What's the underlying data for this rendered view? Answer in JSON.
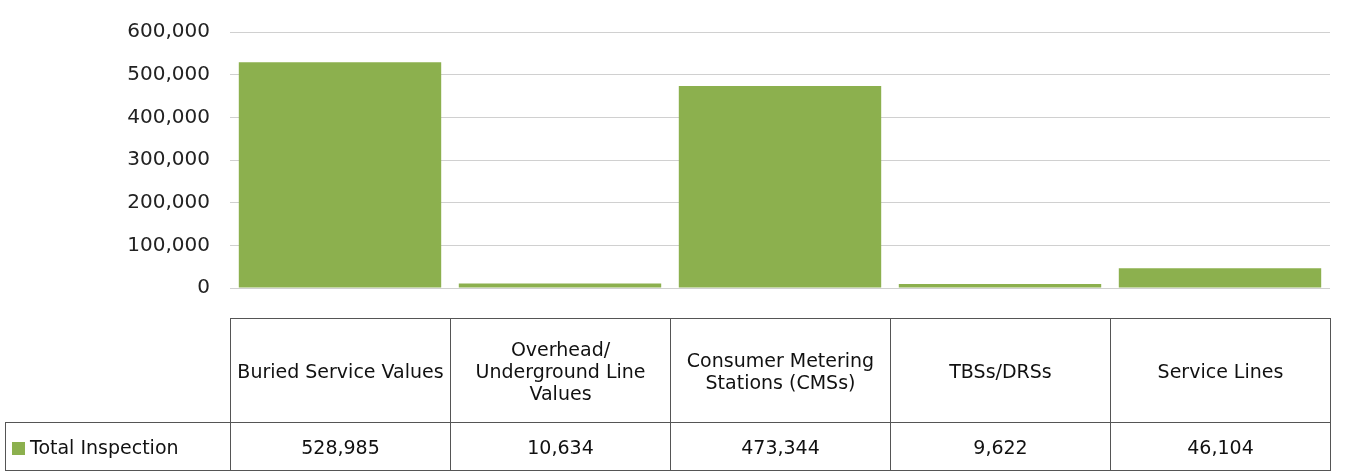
{
  "chart_data": {
    "type": "bar",
    "categories": [
      "Buried Service Values",
      "Overhead/ Underground Line Values",
      "Consumer Metering Stations (CMSs)",
      "TBSs/DRSs",
      "Service Lines"
    ],
    "series": [
      {
        "name": "Total Inspection",
        "color": "#8cb04e",
        "values": [
          528985,
          10634,
          473344,
          9622,
          46104
        ],
        "value_labels": [
          "528,985",
          "10,634",
          "473,344",
          "9,622",
          "46,104"
        ]
      }
    ],
    "ylim": [
      0,
      600000
    ],
    "yticks": [
      {
        "value": 0,
        "label": "0"
      },
      {
        "value": 100000,
        "label": "100,000"
      },
      {
        "value": 200000,
        "label": "200,000"
      },
      {
        "value": 300000,
        "label": "300,000"
      },
      {
        "value": 400000,
        "label": "400,000"
      },
      {
        "value": 500000,
        "label": "500,000"
      },
      {
        "value": 600000,
        "label": "600,000"
      }
    ],
    "grid": "y",
    "legend": "bottom"
  }
}
